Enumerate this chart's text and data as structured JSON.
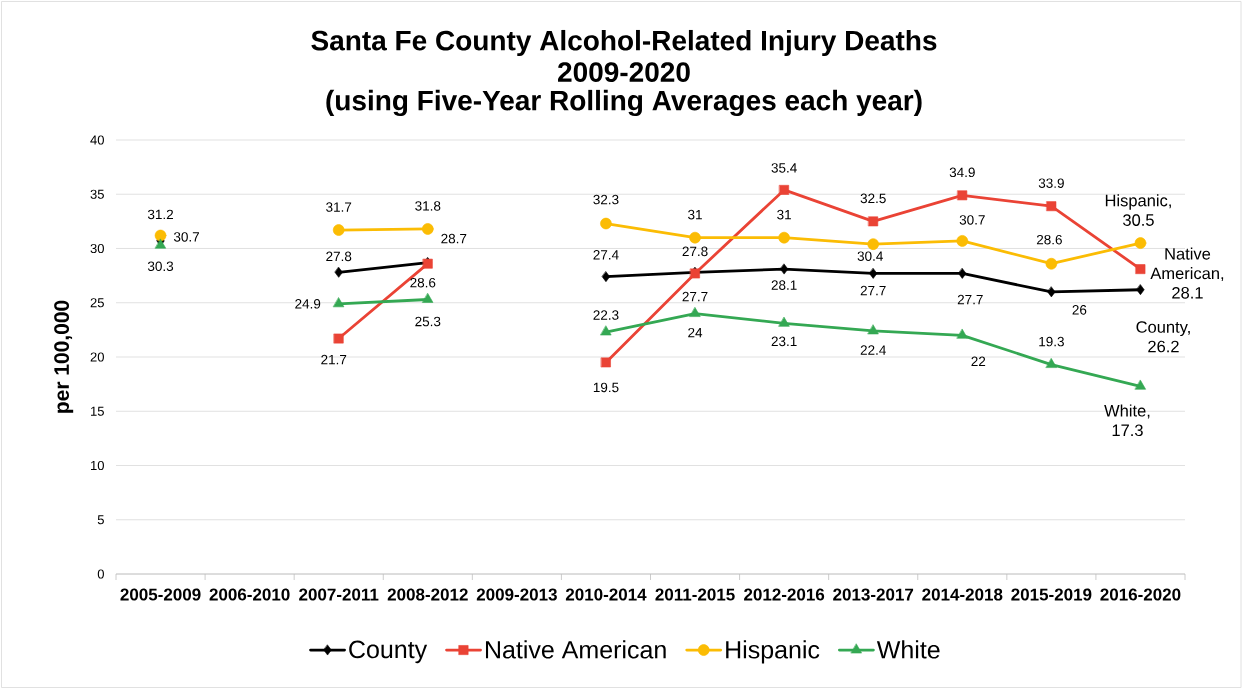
{
  "chart_data": {
    "type": "line",
    "title": "Santa Fe County Alcohol-Related Injury Deaths 2009-2020",
    "subtitle": "(using Five-Year Rolling Averages each year)",
    "ylabel": "per 100,000",
    "categories": [
      "2005-2009",
      "2006-2010",
      "2007-2011",
      "2008-2012",
      "2009-2013",
      "2010-2014",
      "2011-2015",
      "2012-2016",
      "2013-2017",
      "2014-2018",
      "2015-2019",
      "2016-2020"
    ],
    "series": [
      {
        "name": "County",
        "color": "#000000",
        "marker": "diamond",
        "values": [
          30.7,
          null,
          27.8,
          28.7,
          null,
          27.4,
          27.8,
          28.1,
          27.7,
          27.7,
          26,
          26.2
        ],
        "value_labels": [
          "30.7",
          null,
          "27.8",
          "28.7",
          null,
          "27.4",
          "27.8",
          "28.1",
          "27.7",
          "27.7",
          "26",
          "County, 26.2"
        ]
      },
      {
        "name": "Native American",
        "color": "#ea4335",
        "marker": "square",
        "values": [
          null,
          null,
          21.7,
          28.6,
          null,
          19.5,
          27.7,
          35.4,
          32.5,
          34.9,
          33.9,
          28.1
        ],
        "value_labels": [
          null,
          null,
          "21.7",
          "28.6",
          null,
          "19.5",
          "27.7",
          "35.4",
          "32.5",
          "34.9",
          "33.9",
          "Native American, 28.1"
        ]
      },
      {
        "name": "Hispanic",
        "color": "#fbbc04",
        "marker": "circle",
        "values": [
          31.2,
          null,
          31.7,
          31.8,
          null,
          32.3,
          31,
          31,
          30.4,
          30.7,
          28.6,
          30.5
        ],
        "value_labels": [
          "31.2",
          null,
          "31.7",
          "31.8",
          null,
          "32.3",
          "31",
          "31",
          "30.4",
          "30.7",
          "28.6",
          "Hispanic, 30.5"
        ]
      },
      {
        "name": "White",
        "color": "#34a853",
        "marker": "triangle",
        "values": [
          30.3,
          null,
          24.9,
          25.3,
          null,
          22.3,
          24,
          23.1,
          22.4,
          22,
          19.3,
          17.3
        ],
        "value_labels": [
          "30.3",
          null,
          "24.9",
          "25.3",
          null,
          "22.3",
          "24",
          "23.1",
          "22.4",
          "22",
          "19.3",
          "White, 17.3"
        ]
      }
    ],
    "ylim": [
      0,
      40
    ],
    "yticks": [
      0,
      5,
      10,
      15,
      20,
      25,
      30,
      35,
      40
    ],
    "grid": "y",
    "legend": "bottom",
    "line_style": "solid"
  }
}
